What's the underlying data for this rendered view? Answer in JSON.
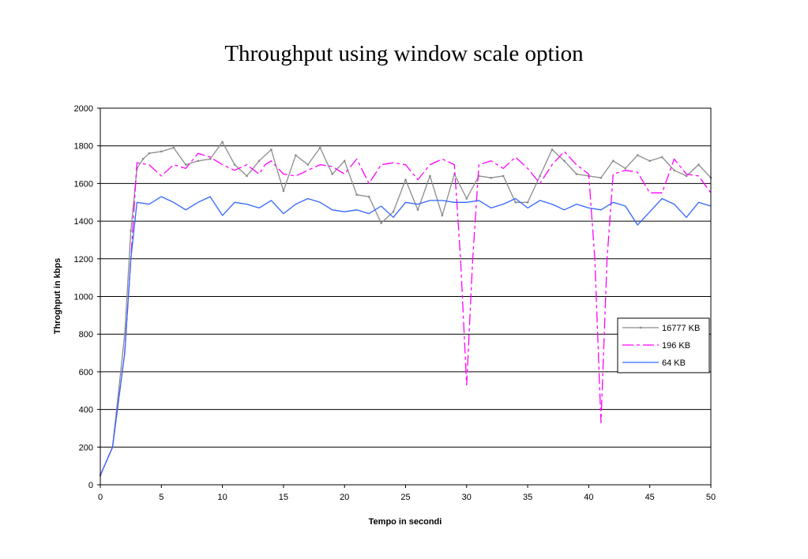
{
  "chart_data": {
    "type": "line",
    "title": "Throughput using window scale option",
    "xlabel": "Tempo in secondi",
    "ylabel": "Throghput in kbps",
    "xlim": [
      0,
      50
    ],
    "ylim": [
      0,
      2000
    ],
    "xticks": [
      0,
      5,
      10,
      15,
      20,
      25,
      30,
      35,
      40,
      45,
      50
    ],
    "yticks": [
      0,
      200,
      400,
      600,
      800,
      1000,
      1200,
      1400,
      1600,
      1800,
      2000
    ],
    "grid": "horizontal",
    "legend_position": "right",
    "series": [
      {
        "name": "16777 KB",
        "color": "#8c8c8c",
        "style": "solid-marker",
        "x": [
          0,
          1,
          2,
          2.5,
          3,
          3.5,
          4,
          5,
          6,
          7,
          8,
          9,
          10,
          11,
          12,
          13,
          14,
          15,
          16,
          17,
          18,
          19,
          20,
          21,
          22,
          23,
          24,
          25,
          26,
          27,
          28,
          29,
          30,
          31,
          32,
          33,
          34,
          35,
          36,
          37,
          38,
          39,
          40,
          41,
          42,
          43,
          44,
          45,
          46,
          47,
          48,
          49,
          50
        ],
        "y": [
          50,
          200,
          800,
          1350,
          1680,
          1730,
          1760,
          1770,
          1790,
          1700,
          1720,
          1730,
          1820,
          1700,
          1640,
          1720,
          1780,
          1560,
          1750,
          1700,
          1790,
          1650,
          1720,
          1540,
          1530,
          1390,
          1450,
          1620,
          1460,
          1640,
          1430,
          1650,
          1520,
          1640,
          1630,
          1640,
          1500,
          1500,
          1640,
          1780,
          1720,
          1650,
          1640,
          1630,
          1720,
          1680,
          1750,
          1720,
          1740,
          1670,
          1640,
          1700,
          1630
        ]
      },
      {
        "name": "196 KB",
        "color": "#ff00ff",
        "style": "dash-dot",
        "x": [
          0,
          1,
          2,
          2.5,
          3,
          4,
          5,
          6,
          7,
          8,
          9,
          10,
          11,
          12,
          13,
          13.5,
          14,
          15,
          16,
          17,
          18,
          19,
          20,
          21,
          22,
          23,
          24,
          25,
          26,
          27,
          28,
          29,
          29.5,
          30,
          30.5,
          31,
          32,
          33,
          34,
          35,
          36,
          37,
          38,
          39,
          40,
          40.5,
          41,
          41.5,
          42,
          43,
          44,
          45,
          46,
          47,
          48,
          49,
          50
        ],
        "y": [
          50,
          200,
          700,
          1200,
          1710,
          1700,
          1640,
          1700,
          1680,
          1760,
          1740,
          1700,
          1670,
          1700,
          1650,
          1700,
          1720,
          1650,
          1640,
          1670,
          1700,
          1690,
          1650,
          1730,
          1600,
          1700,
          1710,
          1700,
          1620,
          1700,
          1730,
          1700,
          1200,
          530,
          1200,
          1700,
          1720,
          1680,
          1740,
          1680,
          1600,
          1700,
          1770,
          1700,
          1650,
          1200,
          330,
          1200,
          1650,
          1670,
          1660,
          1550,
          1550,
          1730,
          1650,
          1640,
          1550
        ]
      },
      {
        "name": "64 KB",
        "color": "#3366ff",
        "style": "solid",
        "x": [
          0,
          1,
          2,
          2.5,
          3,
          4,
          5,
          6,
          7,
          8,
          9,
          10,
          11,
          12,
          13,
          14,
          15,
          16,
          17,
          18,
          19,
          20,
          21,
          22,
          23,
          24,
          25,
          26,
          27,
          28,
          29,
          30,
          31,
          32,
          33,
          34,
          35,
          36,
          37,
          38,
          39,
          40,
          41,
          42,
          43,
          44,
          45,
          46,
          47,
          48,
          49,
          50
        ],
        "y": [
          50,
          200,
          700,
          1200,
          1500,
          1490,
          1530,
          1500,
          1460,
          1500,
          1530,
          1430,
          1500,
          1490,
          1470,
          1510,
          1440,
          1490,
          1520,
          1500,
          1460,
          1450,
          1460,
          1440,
          1480,
          1420,
          1500,
          1490,
          1510,
          1510,
          1500,
          1500,
          1510,
          1470,
          1490,
          1520,
          1470,
          1510,
          1490,
          1460,
          1490,
          1470,
          1460,
          1500,
          1480,
          1380,
          1450,
          1520,
          1490,
          1420,
          1500,
          1480
        ]
      }
    ]
  }
}
